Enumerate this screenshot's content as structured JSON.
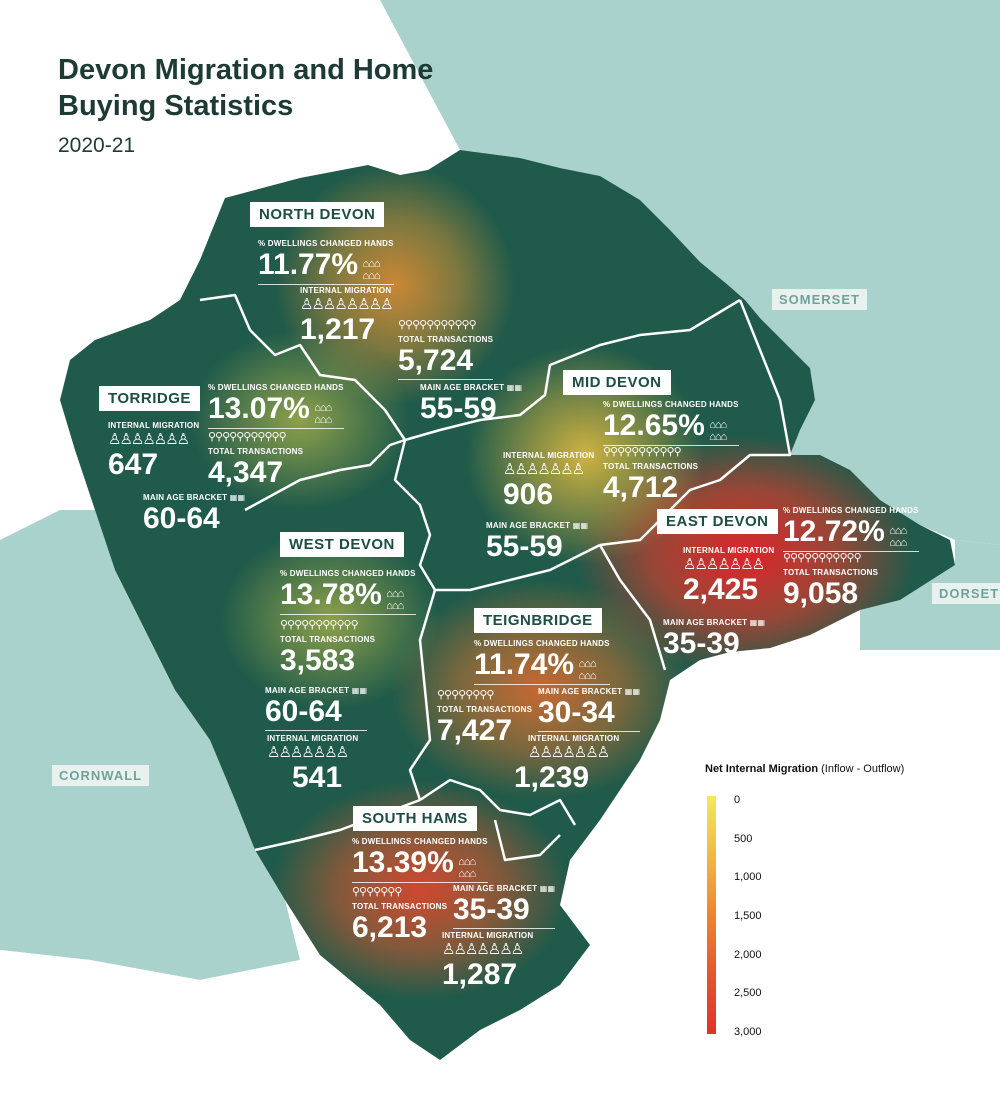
{
  "title": "Devon Migration and Home Buying Statistics",
  "subtitle": "2020-21",
  "neighbours": {
    "somerset": "SOMERSET",
    "dorset": "DORSET",
    "cornwall": "CORNWALL"
  },
  "labels": {
    "dwellings": "% DWELLINGS CHANGED HANDS",
    "migration": "INTERNAL MIGRATION",
    "transactions": "TOTAL TRANSACTIONS",
    "age": "MAIN AGE BRACKET"
  },
  "icons": {
    "houses": "house-icon",
    "people": "person-icon",
    "keys": "key-icon",
    "cakes": "cake-icon"
  },
  "districts": {
    "north_devon": {
      "name": "NORTH DEVON",
      "dwellings": "11.77%",
      "migration": "1,217",
      "transactions": "5,724",
      "age": "55-59"
    },
    "torridge": {
      "name": "TORRIDGE",
      "dwellings": "13.07%",
      "migration": "647",
      "transactions": "4,347",
      "age": "60-64"
    },
    "mid_devon": {
      "name": "MID DEVON",
      "dwellings": "12.65%",
      "migration": "906",
      "transactions": "4,712",
      "age": "55-59"
    },
    "east_devon": {
      "name": "EAST DEVON",
      "dwellings": "12.72%",
      "migration": "2,425",
      "transactions": "9,058",
      "age": "35-39"
    },
    "west_devon": {
      "name": "WEST DEVON",
      "dwellings": "13.78%",
      "migration": "541",
      "transactions": "3,583",
      "age": "60-64"
    },
    "teignbridge": {
      "name": "TEIGNBRIDGE",
      "dwellings": "11.74%",
      "migration": "1,239",
      "transactions": "7,427",
      "age": "30-34"
    },
    "south_hams": {
      "name": "SOUTH HAMS",
      "dwellings": "13.39%",
      "migration": "1,287",
      "transactions": "6,213",
      "age": "35-39"
    }
  },
  "legend": {
    "title_bold": "Net Internal Migration",
    "title_rest": "(Inflow - Outflow)",
    "ticks": [
      "0",
      "500",
      "1,000",
      "1,500",
      "2,000",
      "2,500",
      "3,000"
    ],
    "color_low": "#f6e85a",
    "color_high": "#e2322a"
  },
  "colors": {
    "land": "#1f5a4a",
    "sea": "#a9d2cc",
    "label_text": "#1e4d44"
  }
}
